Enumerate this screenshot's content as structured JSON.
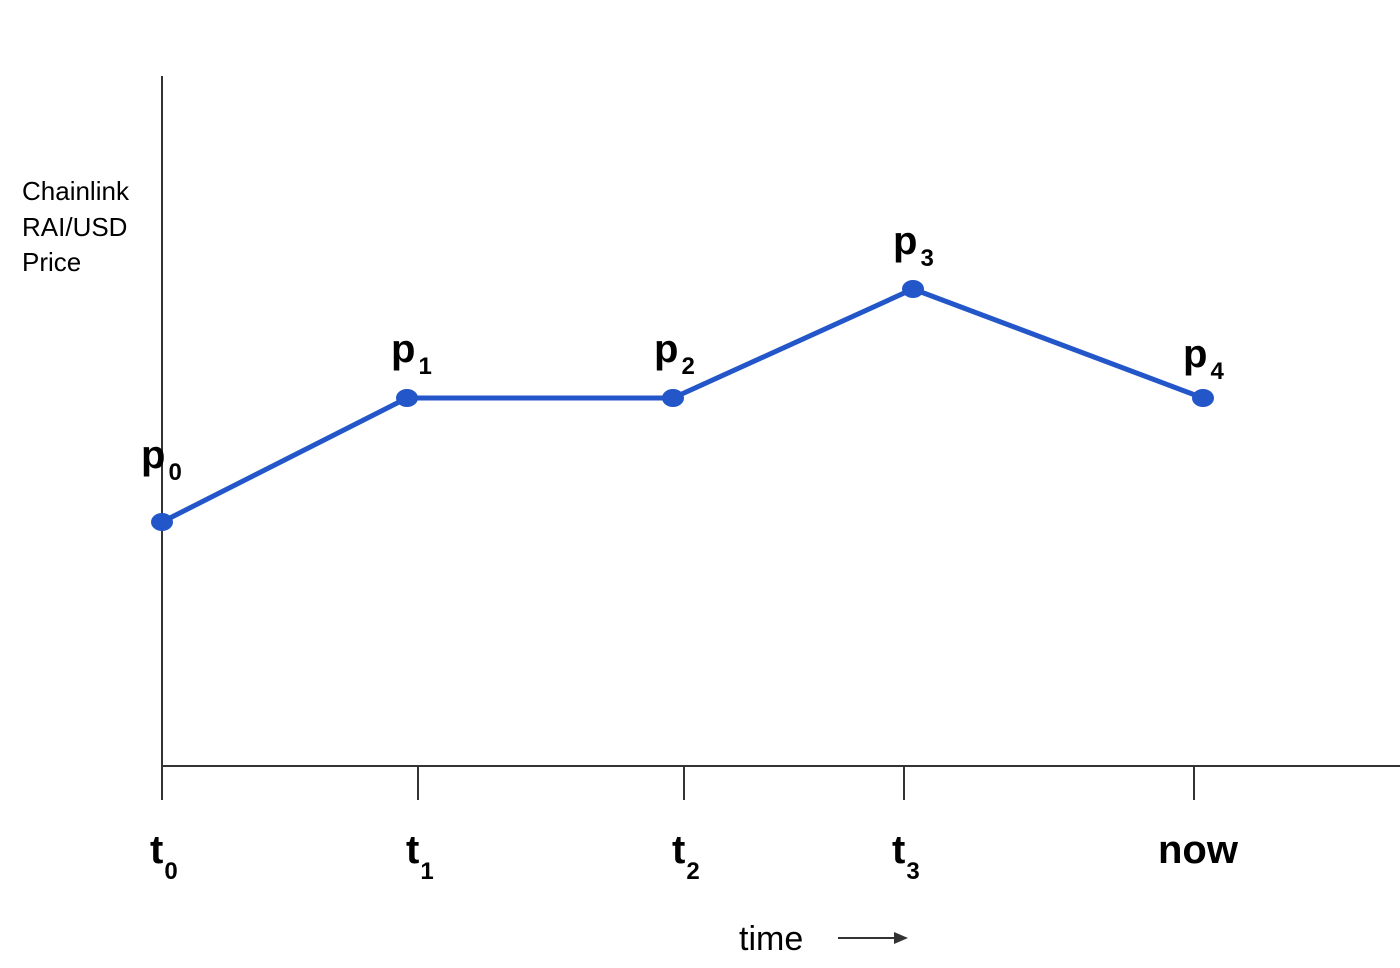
{
  "y_axis_label": [
    "Chainlink",
    "RAI/USD",
    "Price"
  ],
  "points": [
    {
      "base": "p",
      "sub": "0"
    },
    {
      "base": "p",
      "sub": "1"
    },
    {
      "base": "p",
      "sub": "2"
    },
    {
      "base": "p",
      "sub": "3"
    },
    {
      "base": "p",
      "sub": "4"
    }
  ],
  "x_ticks": [
    {
      "base": "t",
      "sub": "0"
    },
    {
      "base": "t",
      "sub": "1"
    },
    {
      "base": "t",
      "sub": "2"
    },
    {
      "base": "t",
      "sub": "3"
    },
    {
      "base": "now"
    }
  ],
  "x_axis_label": "time"
}
